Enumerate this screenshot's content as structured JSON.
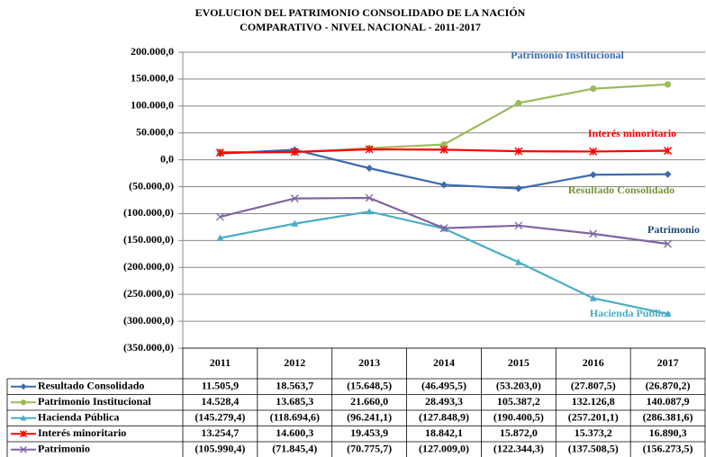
{
  "chart_data": {
    "type": "line",
    "title": "EVOLUCION DEL PATRIMONIO CONSOLIDADO DE LA NACIÓN",
    "subtitle": "COMPARATIVO - NIVEL NACIONAL - 2011-2017",
    "categories": [
      "2011",
      "2012",
      "2013",
      "2014",
      "2015",
      "2016",
      "2017"
    ],
    "ylim": [
      -350000,
      200000
    ],
    "yticks": [
      {
        "value": 200000,
        "label": "200.000,0"
      },
      {
        "value": 150000,
        "label": "150.000,0"
      },
      {
        "value": 100000,
        "label": "100.000,0"
      },
      {
        "value": 50000,
        "label": "50.000,0"
      },
      {
        "value": 0,
        "label": "0,0"
      },
      {
        "value": -50000,
        "label": "(50.000,0)"
      },
      {
        "value": -100000,
        "label": "(100.000,0)"
      },
      {
        "value": -150000,
        "label": "(150.000,0)"
      },
      {
        "value": -200000,
        "label": "(200.000,0)"
      },
      {
        "value": -250000,
        "label": "(250.000,0)"
      },
      {
        "value": -300000,
        "label": "(300.000,0)"
      },
      {
        "value": -350000,
        "label": "(350.000,0)"
      }
    ],
    "grid": true,
    "series": [
      {
        "name": "Resultado Consolidado",
        "color": "#3b6bb0",
        "marker": "diamond",
        "values": [
          11505.9,
          18563.7,
          -15648.5,
          -46495.5,
          -53203.0,
          -27807.5,
          -26870.2
        ],
        "value_labels": [
          "11.505,9",
          "18.563,7",
          "(15.648,5)",
          "(46.495,5)",
          "(53.203,0)",
          "(27.807,5)",
          "(26.870,2)"
        ]
      },
      {
        "name": "Patrimonio Institucional",
        "color": "#9bbb59",
        "marker": "circle",
        "values": [
          14528.4,
          13685.3,
          21660.0,
          28493.3,
          105387.2,
          132126.8,
          140087.9
        ],
        "value_labels": [
          "14.528,4",
          "13.685,3",
          "21.660,0",
          "28.493,3",
          "105.387,2",
          "132.126,8",
          "140.087,9"
        ]
      },
      {
        "name": "Hacienda Pública",
        "color": "#4bacc6",
        "marker": "triangle",
        "values": [
          -145279.4,
          -118694.6,
          -96241.1,
          -127848.9,
          -190400.5,
          -257201.1,
          -286381.6
        ],
        "value_labels": [
          "(145.279,4)",
          "(118.694,6)",
          "(96.241,1)",
          "(127.848,9)",
          "(190.400,5)",
          "(257.201,1)",
          "(286.381,6)"
        ]
      },
      {
        "name": "Interés minoritario",
        "color": "#ff0000",
        "marker": "star",
        "values": [
          13254.7,
          14600.3,
          19453.9,
          18842.1,
          15872.0,
          15373.2,
          16890.3
        ],
        "value_labels": [
          "13.254,7",
          "14.600,3",
          "19.453,9",
          "18.842,1",
          "15.872,0",
          "15.373,2",
          "16.890,3"
        ]
      },
      {
        "name": "Patrimonio",
        "color": "#8064a2",
        "marker": "x",
        "values": [
          -105990.4,
          -71845.4,
          -70775.7,
          -127009.0,
          -122344.3,
          -137508.5,
          -156273.5
        ],
        "value_labels": [
          "(105.990,4)",
          "(71.845,4)",
          "(70.775,7)",
          "(127.009,0)",
          "(122.344,3)",
          "(137.508,5)",
          "(156.273,5)"
        ]
      }
    ],
    "annotations": [
      {
        "text": "Patrimonio Institucional",
        "color": "#3b6bb0"
      },
      {
        "text": "Interés minoritario",
        "color": "#ff0000"
      },
      {
        "text": "Resultado Consolidado",
        "color": "#77933c"
      },
      {
        "text": "Patrimonio",
        "color": "#1f497d"
      },
      {
        "text": "Hacienda Pública",
        "color": "#4bacc6"
      }
    ]
  }
}
